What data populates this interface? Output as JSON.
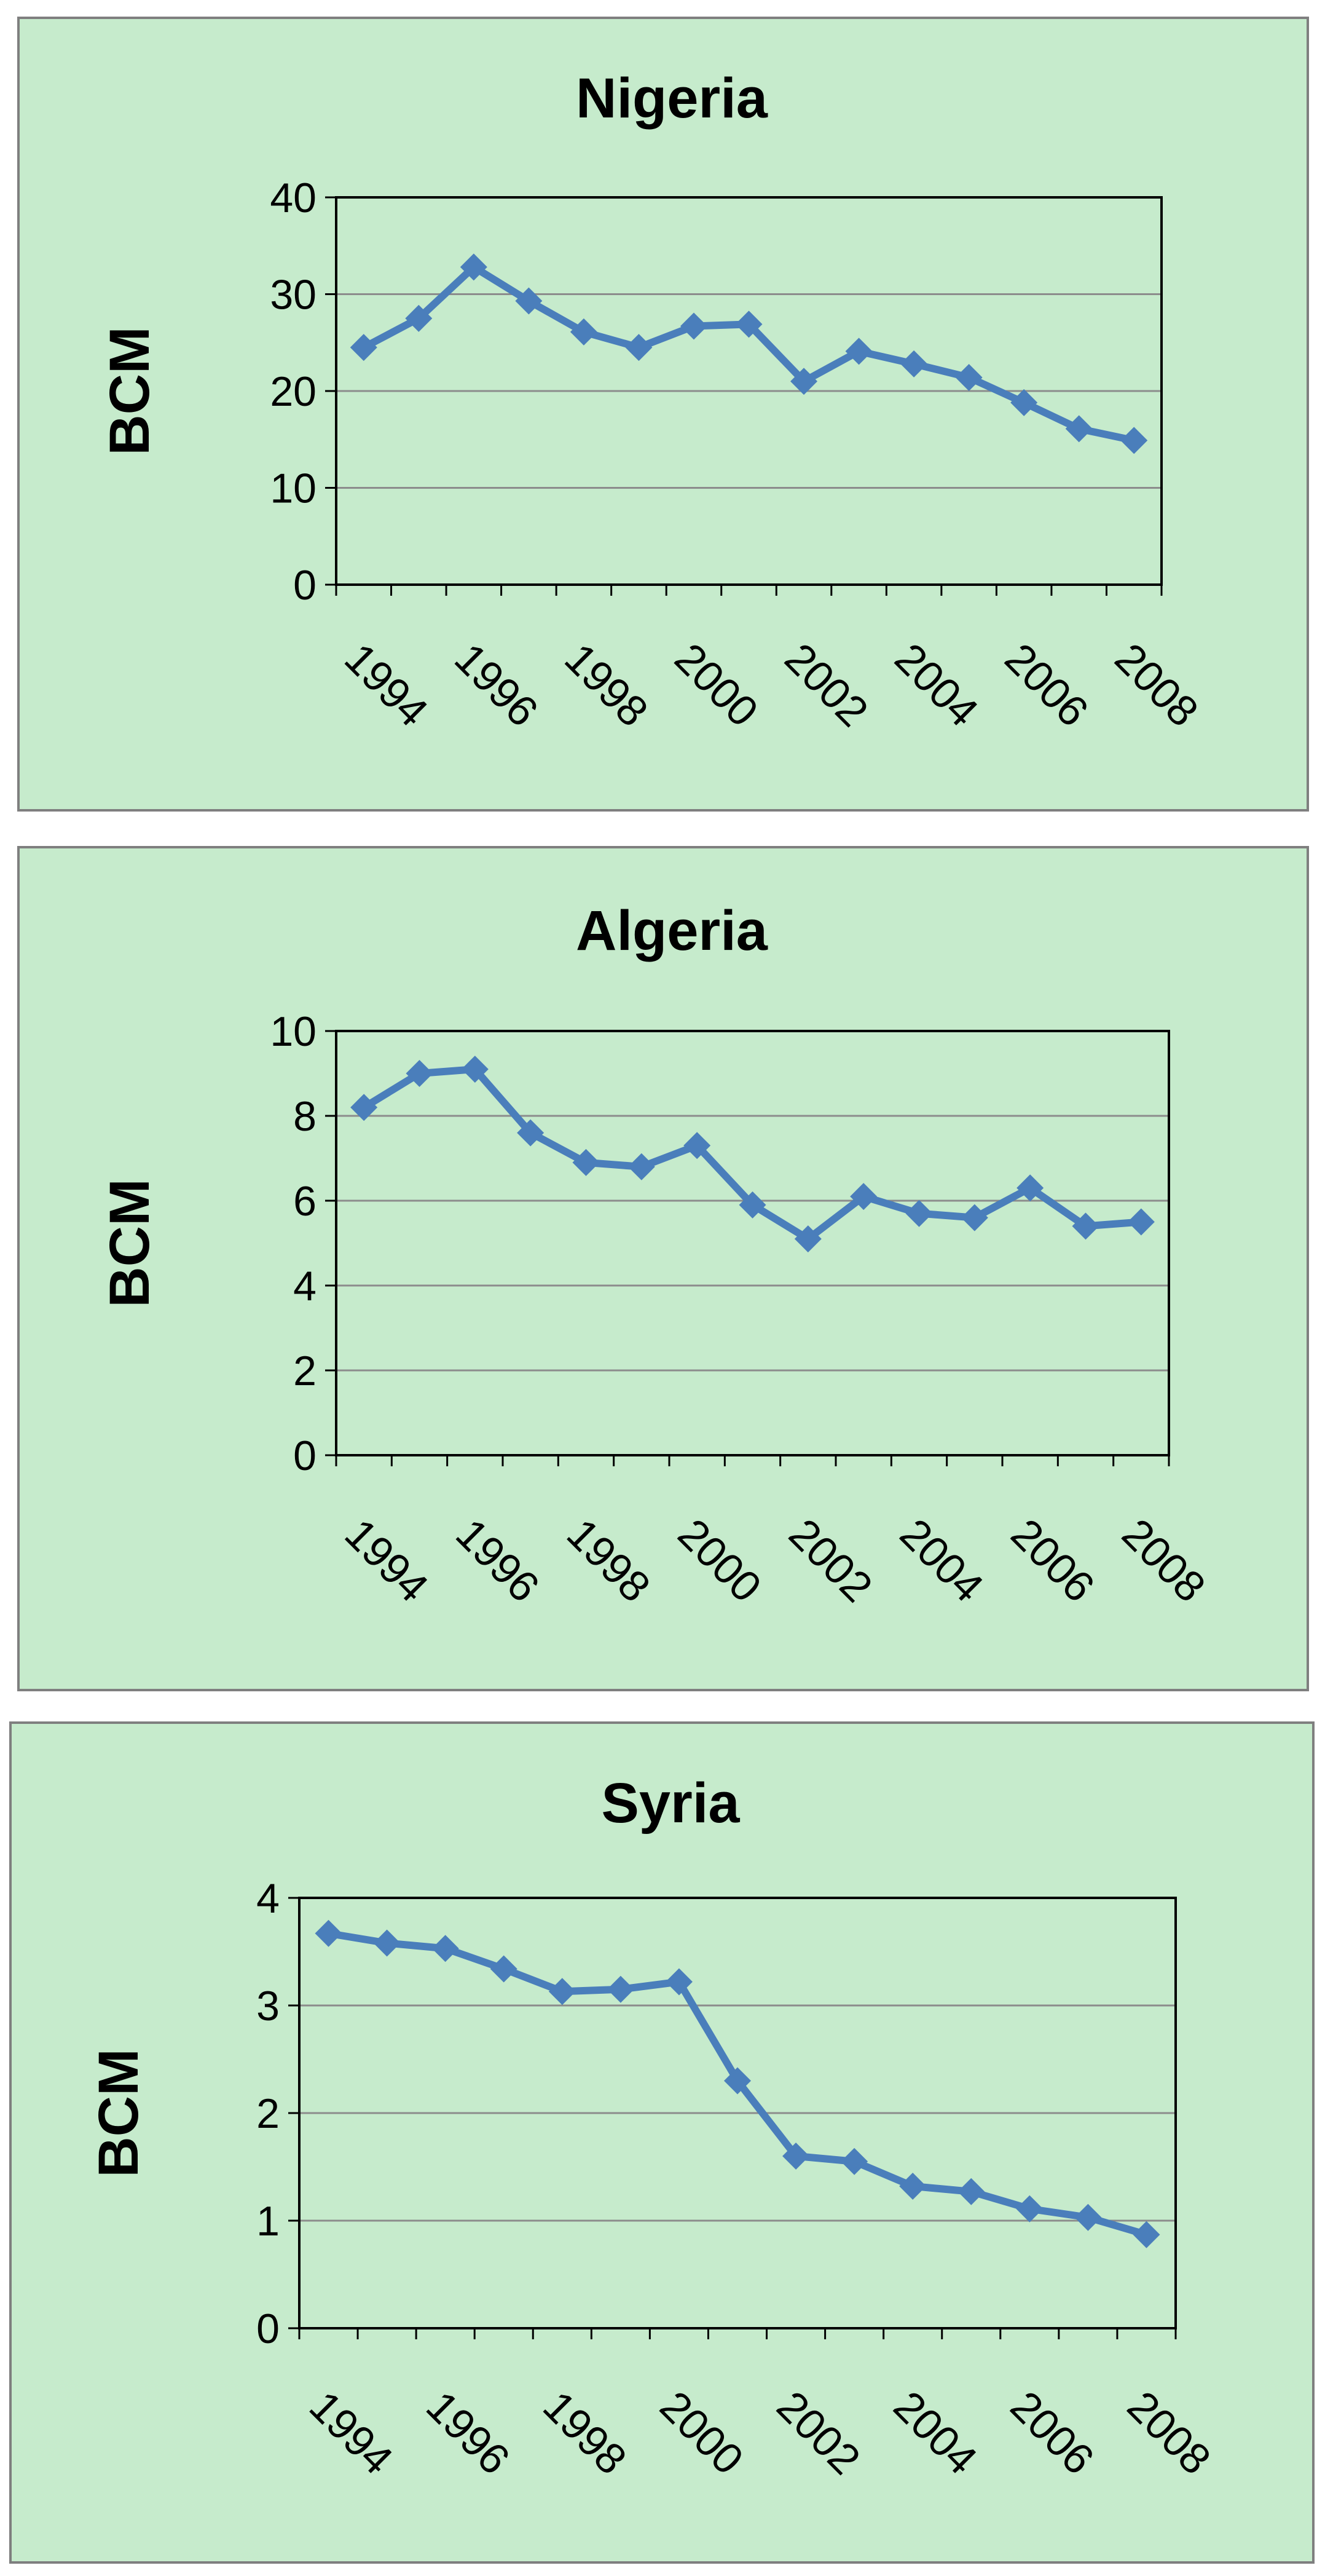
{
  "chart_data": [
    {
      "type": "line",
      "title": "Nigeria",
      "ylabel": "BCM",
      "xlabel": "",
      "ylim": [
        0,
        40
      ],
      "yticks": [
        0,
        10,
        20,
        30,
        40
      ],
      "x": [
        1994,
        1995,
        1996,
        1997,
        1998,
        1999,
        2000,
        2001,
        2002,
        2003,
        2004,
        2005,
        2006,
        2007,
        2008
      ],
      "xtick_labels": [
        "1994",
        "1996",
        "1998",
        "2000",
        "2002",
        "2004",
        "2006",
        "2008"
      ],
      "series": [
        {
          "values": [
            24.5,
            27.5,
            32.8,
            29.3,
            26.1,
            24.5,
            26.7,
            26.9,
            21.0,
            24.1,
            22.8,
            21.4,
            18.8,
            16.1,
            14.9
          ]
        }
      ],
      "grid": true,
      "legend": "none",
      "line_color": "#4a7ebb",
      "background": "#c6ebcc"
    },
    {
      "type": "line",
      "title": "Algeria",
      "ylabel": "BCM",
      "xlabel": "",
      "ylim": [
        0,
        10
      ],
      "yticks": [
        0,
        2,
        4,
        6,
        8,
        10
      ],
      "x": [
        1994,
        1995,
        1996,
        1997,
        1998,
        1999,
        2000,
        2001,
        2002,
        2003,
        2004,
        2005,
        2006,
        2007,
        2008
      ],
      "xtick_labels": [
        "1994",
        "1996",
        "1998",
        "2000",
        "2002",
        "2004",
        "2006",
        "2008"
      ],
      "series": [
        {
          "values": [
            8.2,
            9.0,
            9.1,
            7.6,
            6.9,
            6.8,
            7.3,
            5.9,
            5.1,
            6.1,
            5.7,
            5.6,
            6.3,
            5.4,
            5.5
          ]
        }
      ],
      "grid": true,
      "legend": "none",
      "line_color": "#4a7ebb",
      "background": "#c6ebcc"
    },
    {
      "type": "line",
      "title": "Syria",
      "ylabel": "BCM",
      "xlabel": "",
      "ylim": [
        0,
        4
      ],
      "yticks": [
        0,
        1,
        2,
        3,
        4
      ],
      "x": [
        1994,
        1995,
        1996,
        1997,
        1998,
        1999,
        2000,
        2001,
        2002,
        2003,
        2004,
        2005,
        2006,
        2007,
        2008
      ],
      "xtick_labels": [
        "1994",
        "1996",
        "1998",
        "2000",
        "2002",
        "2004",
        "2006",
        "2008"
      ],
      "series": [
        {
          "values": [
            3.67,
            3.58,
            3.53,
            3.34,
            3.13,
            3.15,
            3.22,
            2.3,
            1.6,
            1.55,
            1.32,
            1.27,
            1.11,
            1.03,
            0.87
          ]
        }
      ],
      "grid": true,
      "legend": "none",
      "line_color": "#4a7ebb",
      "background": "#c6ebcc"
    }
  ]
}
